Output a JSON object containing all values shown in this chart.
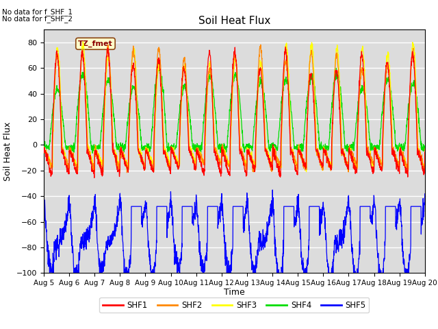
{
  "title": "Soil Heat Flux",
  "ylabel": "Soil Heat Flux",
  "xlabel": "Time",
  "annotations": [
    "No data for f_SHF_1",
    "No data for f_SHF_2"
  ],
  "annotation_box": "TZ_fmet",
  "ylim": [
    -100,
    90
  ],
  "yticks": [
    -100,
    -80,
    -60,
    -40,
    -20,
    0,
    20,
    40,
    60,
    80
  ],
  "xticklabels": [
    "Aug 5",
    "Aug 6",
    "Aug 7",
    "Aug 8",
    "Aug 9",
    "Aug 10",
    "Aug 11",
    "Aug 12",
    "Aug 13",
    "Aug 14",
    "Aug 15",
    "Aug 16",
    "Aug 17",
    "Aug 18",
    "Aug 19",
    "Aug 20"
  ],
  "colors": {
    "SHF1": "#ff0000",
    "SHF2": "#ff8800",
    "SHF3": "#ffff00",
    "SHF4": "#00dd00",
    "SHF5": "#0000ff"
  },
  "plot_bg": "#dcdcdc",
  "n_days": 15,
  "pts_per_day": 144
}
